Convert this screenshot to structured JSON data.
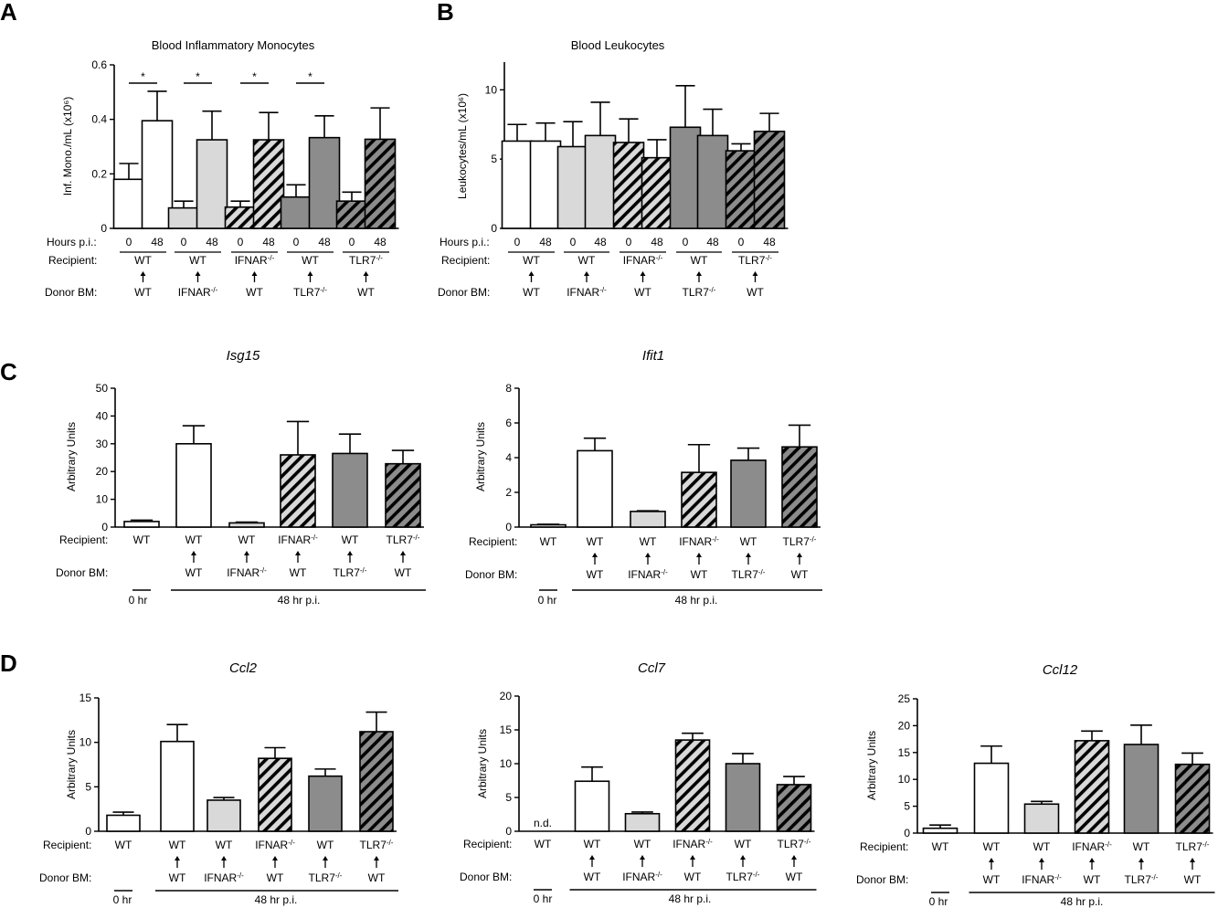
{
  "panels": {
    "A": {
      "label": "A",
      "title": "Blood Inflammatory Monocytes"
    },
    "B": {
      "label": "B",
      "title": "Blood Leukocytes"
    },
    "C": {
      "label": "C"
    },
    "D": {
      "label": "D"
    }
  },
  "row_labels": {
    "hours": "Hours p.i.:",
    "recipient": "Recipient:",
    "donor": "Donor BM:"
  },
  "annotations": {
    "zero_hr": "0 hr",
    "p48": "48 hr p.i.",
    "nd": "n.d.",
    "sig": "*"
  },
  "groups_ab": [
    {
      "recipient": "WT",
      "donor": "WT",
      "fill": "white"
    },
    {
      "recipient": "WT",
      "donor": "IFNAR-/-",
      "fill": "light"
    },
    {
      "recipient": "IFNAR-/-",
      "donor": "WT",
      "fill": "light-hatch"
    },
    {
      "recipient": "WT",
      "donor": "TLR7-/-",
      "fill": "dark"
    },
    {
      "recipient": "TLR7-/-",
      "donor": "WT",
      "fill": "dark-hatch"
    }
  ],
  "groups_cd": [
    {
      "recipient": "WT",
      "donor": "",
      "fill": "white"
    },
    {
      "recipient": "WT",
      "donor": "WT",
      "fill": "white"
    },
    {
      "recipient": "WT",
      "donor": "IFNAR-/-",
      "fill": "light"
    },
    {
      "recipient": "IFNAR-/-",
      "donor": "WT",
      "fill": "light-hatch"
    },
    {
      "recipient": "WT",
      "donor": "TLR7-/-",
      "fill": "dark"
    },
    {
      "recipient": "TLR7-/-",
      "donor": "WT",
      "fill": "dark-hatch"
    }
  ],
  "colors": {
    "white": "#ffffff",
    "light": "#d9d9d9",
    "dark": "#8c8c8c",
    "stroke": "#000000"
  },
  "chart_data": [
    {
      "id": "A",
      "type": "bar",
      "title": "Blood Inflammatory Monocytes",
      "ylabel": "Inf. Mono./mL (x10⁶)",
      "ylim": [
        0,
        0.6
      ],
      "yticks": [
        0,
        0.2,
        0.4,
        0.6
      ],
      "ytick_labels": [
        "0",
        "0.2",
        "0.4",
        "0.6"
      ],
      "hours": [
        "0",
        "48"
      ],
      "values": [
        0.18,
        0.395,
        0.075,
        0.325,
        0.078,
        0.325,
        0.115,
        0.333,
        0.1,
        0.327
      ],
      "errors": [
        0.058,
        0.108,
        0.025,
        0.105,
        0.022,
        0.1,
        0.045,
        0.08,
        0.033,
        0.115
      ],
      "significance": [
        true,
        true,
        true,
        true,
        false
      ]
    },
    {
      "id": "B",
      "type": "bar",
      "title": "Blood Leukocytes",
      "ylabel": "Leukocytes/mL (x10⁶)",
      "ylim": [
        0,
        12
      ],
      "yticks": [
        0,
        5,
        10
      ],
      "ytick_labels": [
        "0",
        "5",
        "10"
      ],
      "hours": [
        "0",
        "48"
      ],
      "values": [
        6.3,
        6.3,
        5.9,
        6.7,
        6.2,
        5.1,
        7.3,
        6.7,
        5.6,
        7.0
      ],
      "errors": [
        1.2,
        1.3,
        1.8,
        2.4,
        1.7,
        1.3,
        3.0,
        1.9,
        0.5,
        1.3
      ]
    },
    {
      "id": "C1",
      "type": "bar",
      "title": "Isg15",
      "ylabel": "Arbitrary Units",
      "ylim": [
        0,
        50
      ],
      "yticks": [
        0,
        10,
        20,
        30,
        40,
        50
      ],
      "ytick_labels": [
        "0",
        "10",
        "20",
        "30",
        "40",
        "50"
      ],
      "values": [
        2.0,
        30.0,
        1.5,
        26.0,
        26.5,
        22.8
      ],
      "errors": [
        0.5,
        6.5,
        0.3,
        12.0,
        7.0,
        4.8
      ]
    },
    {
      "id": "C2",
      "type": "bar",
      "title": "Ifit1",
      "ylabel": "Arbitrary Units",
      "ylim": [
        0,
        8
      ],
      "yticks": [
        0,
        2,
        4,
        6,
        8
      ],
      "ytick_labels": [
        "0",
        "2",
        "4",
        "6",
        "8"
      ],
      "values": [
        0.13,
        4.4,
        0.9,
        3.15,
        3.85,
        4.62
      ],
      "errors": [
        0.03,
        0.72,
        0.04,
        1.6,
        0.7,
        1.25
      ]
    },
    {
      "id": "D1",
      "type": "bar",
      "title": "Ccl2",
      "ylabel": "Arbitrary Units",
      "ylim": [
        0,
        15
      ],
      "yticks": [
        0,
        5,
        10,
        15
      ],
      "ytick_labels": [
        "0",
        "5",
        "10",
        "15"
      ],
      "values": [
        1.8,
        10.1,
        3.5,
        8.2,
        6.2,
        11.2
      ],
      "errors": [
        0.35,
        1.9,
        0.3,
        1.2,
        0.8,
        2.2
      ]
    },
    {
      "id": "D2",
      "type": "bar",
      "title": "Ccl7",
      "ylabel": "Arbitrary Units",
      "ylim": [
        0,
        20
      ],
      "yticks": [
        0,
        5,
        10,
        15,
        20
      ],
      "ytick_labels": [
        "0",
        "5",
        "10",
        "15",
        "20"
      ],
      "values": [
        null,
        7.4,
        2.6,
        13.5,
        10.0,
        6.9
      ],
      "errors": [
        null,
        2.1,
        0.25,
        1.0,
        1.5,
        1.2
      ]
    },
    {
      "id": "D3",
      "type": "bar",
      "title": "Ccl12",
      "ylabel": "Arbitrary Units",
      "ylim": [
        0,
        25
      ],
      "yticks": [
        0,
        5,
        10,
        15,
        20,
        25
      ],
      "ytick_labels": [
        "0",
        "5",
        "10",
        "15",
        "20",
        "25"
      ],
      "values": [
        0.9,
        13.0,
        5.4,
        17.2,
        16.5,
        12.8
      ],
      "errors": [
        0.6,
        3.2,
        0.5,
        1.8,
        3.6,
        2.1
      ]
    }
  ]
}
